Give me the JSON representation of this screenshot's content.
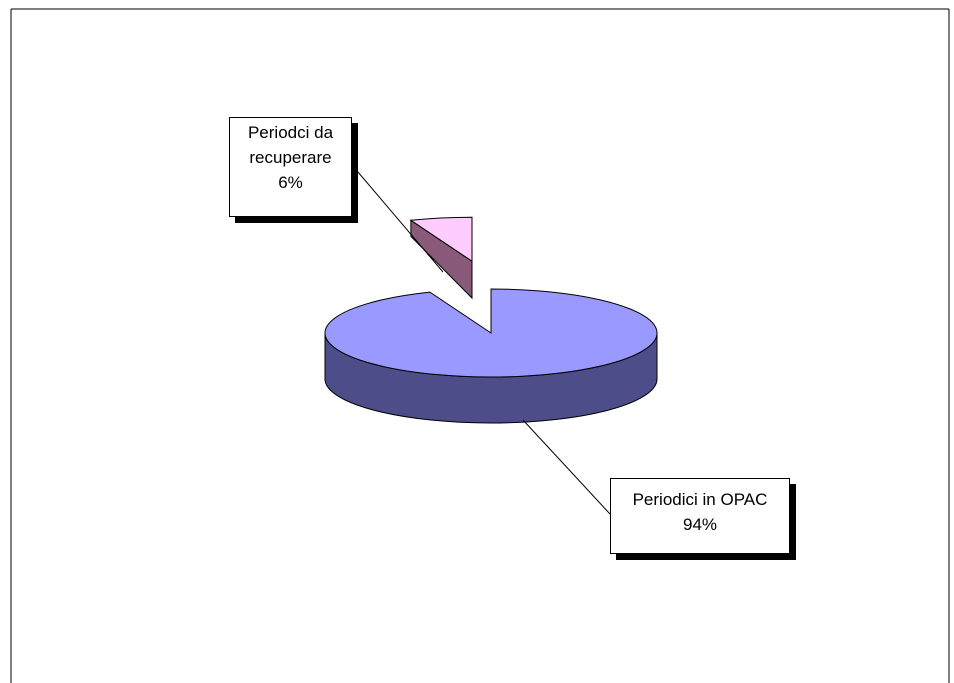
{
  "chart_data": {
    "type": "pie",
    "style": "3d-exploded",
    "slices": [
      {
        "label_lines": [
          "Periodici in OPAC"
        ],
        "value_label": "94%",
        "value": 94,
        "color_top": "#9999ff",
        "color_side": "#4d4d8a"
      },
      {
        "label_lines": [
          "Periodci da",
          "recuperare"
        ],
        "value_label": "6%",
        "value": 6,
        "color_top": "#ffccff",
        "color_side": "#8a5a7a"
      }
    ],
    "legend": "none",
    "title": ""
  }
}
